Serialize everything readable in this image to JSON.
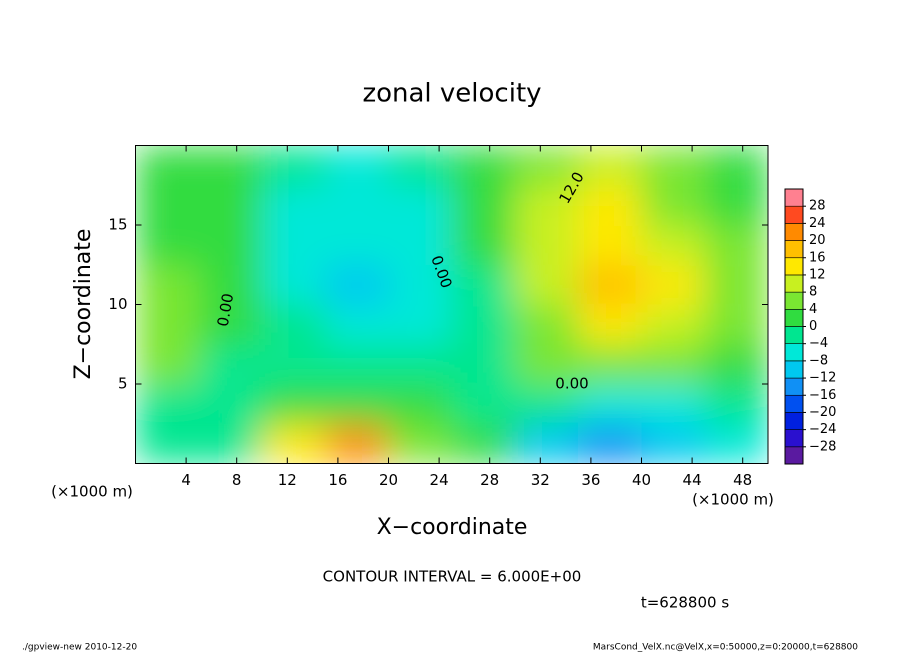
{
  "chart_data": {
    "type": "contour",
    "title": "zonal velocity",
    "xlabel": "X−coordinate",
    "ylabel": "Z−coordinate",
    "x_unit": "(×1000 m)",
    "y_unit": "(×1000 m)",
    "xlim": [
      0,
      50
    ],
    "ylim": [
      0,
      20
    ],
    "xticks": [
      4,
      8,
      12,
      16,
      20,
      24,
      28,
      32,
      36,
      40,
      44,
      48
    ],
    "yticks": [
      5,
      10,
      15
    ],
    "x_edges": [
      0,
      5,
      10,
      15,
      20,
      25,
      30,
      35,
      40,
      45,
      50
    ],
    "y_edges": [
      0,
      2.5,
      5,
      7.5,
      10,
      12.5,
      15,
      17.5,
      20
    ],
    "values": [
      [
        -2,
        -4,
        14,
        20,
        6,
        0,
        -10,
        -16,
        -10,
        -6
      ],
      [
        -2,
        -2,
        2,
        2,
        0,
        -2,
        -4,
        -8,
        -6,
        -2
      ],
      [
        4,
        -2,
        -2,
        -4,
        -4,
        -2,
        4,
        4,
        4,
        2
      ],
      [
        6,
        0,
        -4,
        -8,
        -6,
        -2,
        6,
        12,
        10,
        4
      ],
      [
        4,
        2,
        -6,
        -9,
        -6,
        -2,
        10,
        16,
        14,
        4
      ],
      [
        2,
        2,
        -6,
        -8,
        -6,
        0,
        10,
        14,
        10,
        4
      ],
      [
        2,
        2,
        -6,
        -8,
        -6,
        2,
        8,
        12,
        6,
        2
      ],
      [
        2,
        2,
        -4,
        -6,
        -4,
        2,
        6,
        8,
        4,
        2
      ]
    ],
    "colorbar": {
      "lim": [
        -32,
        32
      ],
      "ticks": [
        -28,
        -24,
        -20,
        -16,
        -12,
        -8,
        -4,
        0,
        4,
        8,
        12,
        16,
        20,
        24,
        28
      ],
      "ticks_labels": [
        "−28",
        "−24",
        "−20",
        "−16",
        "−12",
        "−8",
        "−4",
        "0",
        "4",
        "8",
        "12",
        "16",
        "20",
        "24",
        "28"
      ],
      "colors": [
        "#5a1aa0",
        "#2a10cf",
        "#0020e0",
        "#0050f0",
        "#1090f5",
        "#00c8f0",
        "#00e8d8",
        "#00e690",
        "#30dc40",
        "#7ae632",
        "#c8f020",
        "#ffe800",
        "#ffbf00",
        "#ff8a00",
        "#ff4a20",
        "#ff8090"
      ]
    },
    "contour_labels": [
      "0.00",
      "0.00",
      "0.00",
      "12.0"
    ],
    "contour_interval": "CONTOUR INTERVAL = 6.000E+00",
    "time": "t=628800 s",
    "footer_left": "./gpview-new  2010-12-20",
    "footer_right": "MarsCond_VelX.nc@VelX,x=0:50000,z=0:20000,t=628800"
  }
}
